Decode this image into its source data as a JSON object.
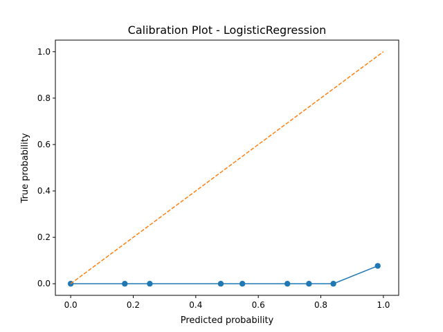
{
  "chart_data": {
    "type": "line",
    "title": "Calibration Plot - LogisticRegression",
    "xlabel": "Predicted probability",
    "ylabel": "True probability",
    "xlim": [
      -0.049,
      1.049
    ],
    "ylim": [
      -0.05,
      1.05
    ],
    "xticks": [
      "0.0",
      "0.2",
      "0.4",
      "0.6",
      "0.8",
      "1.0"
    ],
    "yticks": [
      "0.0",
      "0.2",
      "0.4",
      "0.6",
      "0.8",
      "1.0"
    ],
    "grid": false,
    "series": [
      {
        "style": "solid-with-markers",
        "color": "#1f77b4",
        "x": [
          0.0,
          0.173,
          0.253,
          0.48,
          0.549,
          0.693,
          0.762,
          0.84,
          0.982
        ],
        "y": [
          0.0,
          0.0,
          0.0,
          0.0,
          0.0,
          0.0,
          0.0,
          0.0,
          0.077
        ]
      },
      {
        "style": "dashed",
        "color": "#ff7f0e",
        "x": [
          0.0,
          1.0
        ],
        "y": [
          0.0,
          1.0
        ]
      }
    ]
  }
}
